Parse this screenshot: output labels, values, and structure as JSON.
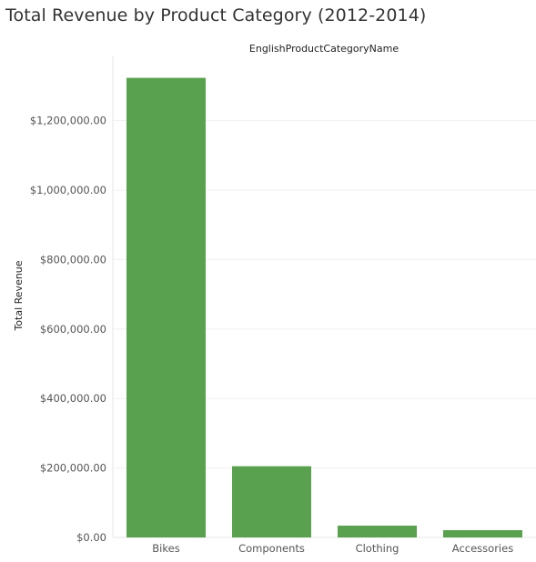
{
  "chart_data": {
    "type": "bar",
    "title": "Total Revenue by Product Category (2012-2014)",
    "xlabel": "EnglishProductCategoryName",
    "ylabel": "Total Revenue",
    "categories": [
      "Bikes",
      "Components",
      "Clothing",
      "Accessories"
    ],
    "values": [
      1323000,
      205000,
      34000,
      21000
    ],
    "ylim": [
      0,
      1400000
    ],
    "yticks": [
      0,
      200000,
      400000,
      600000,
      800000,
      1000000,
      1200000
    ],
    "ytick_labels": [
      "$0.00",
      "$200,000.00",
      "$400,000.00",
      "$600,000.00",
      "$800,000.00",
      "$1,000,000.00",
      "$1,200,000.00"
    ],
    "bar_color": "#59a14f",
    "grid": true,
    "legend": "none"
  }
}
